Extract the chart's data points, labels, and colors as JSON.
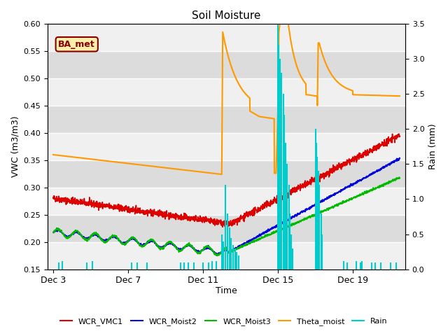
{
  "title": "Soil Moisture",
  "xlabel": "Time",
  "ylabel_left": "VWC (m3/m3)",
  "ylabel_right": "Rain (mm)",
  "ylim_left": [
    0.15,
    0.6
  ],
  "ylim_right": [
    0.0,
    3.5
  ],
  "background_color": "#ffffff",
  "plot_bg_light": "#f0f0f0",
  "plot_bg_dark": "#dcdcdc",
  "grid_color": "#ffffff",
  "ba_met_label": "BA_met",
  "ba_met_bg": "#ffeeaa",
  "ba_met_border": "#880000",
  "legend_colors": [
    "#dd0000",
    "#0000dd",
    "#00bb00",
    "#ff9900",
    "#00cccc"
  ],
  "legend_labels": [
    "WCR_VMC1",
    "WCR_Moist2",
    "WCR_Moist3",
    "Theta_moist",
    "Rain"
  ],
  "xlim": [
    -0.3,
    18.8
  ],
  "xtick_pos": [
    0,
    4,
    8,
    12,
    16
  ],
  "xtick_labels": [
    "Dec 3",
    "Dec 7",
    "Dec 11",
    "Dec 15",
    "Dec 19"
  ],
  "yticks_left": [
    0.15,
    0.2,
    0.25,
    0.3,
    0.35,
    0.4,
    0.45,
    0.5,
    0.55,
    0.6
  ],
  "yticks_right": [
    0.0,
    0.5,
    1.0,
    1.5,
    2.0,
    2.5,
    3.0,
    3.5
  ]
}
